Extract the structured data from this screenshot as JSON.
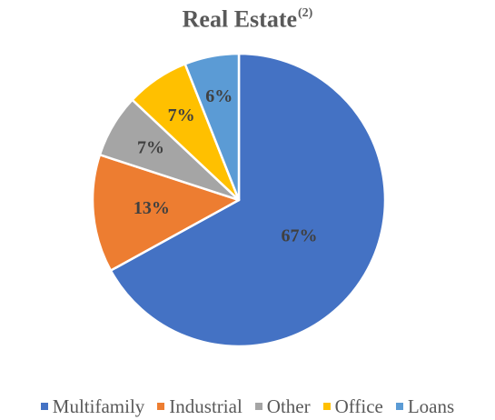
{
  "chart_data": {
    "type": "pie",
    "title": "Real Estate",
    "title_superscript": "(2)",
    "categories": [
      "Multifamily",
      "Industrial",
      "Other",
      "Office",
      "Loans"
    ],
    "values": [
      67,
      13,
      7,
      7,
      6
    ],
    "labels": [
      "67%",
      "13%",
      "7%",
      "7%",
      "6%"
    ],
    "colors": [
      "#4472C4",
      "#ED7D31",
      "#A5A5A5",
      "#FFC000",
      "#5B9BD5"
    ],
    "legend_position": "bottom",
    "start_angle": "12 o'clock",
    "direction": "clockwise"
  }
}
